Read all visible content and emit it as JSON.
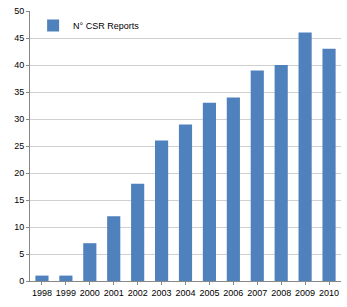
{
  "chart_data": {
    "type": "bar",
    "categories": [
      "1998",
      "1999",
      "2000",
      "2001",
      "2002",
      "2003",
      "2004",
      "2005",
      "2006",
      "2007",
      "2008",
      "2009",
      "2010"
    ],
    "series": [
      {
        "name": "N° CSR Reports",
        "color": "#4f81bd",
        "values": [
          1,
          1,
          7,
          12,
          18,
          26,
          29,
          33,
          34,
          39,
          40,
          46,
          43
        ]
      }
    ],
    "ylim": [
      0,
      50
    ],
    "yticks": [
      0,
      5,
      10,
      15,
      20,
      25,
      30,
      35,
      40,
      45,
      50
    ],
    "grid": true,
    "legend": "top-left"
  }
}
